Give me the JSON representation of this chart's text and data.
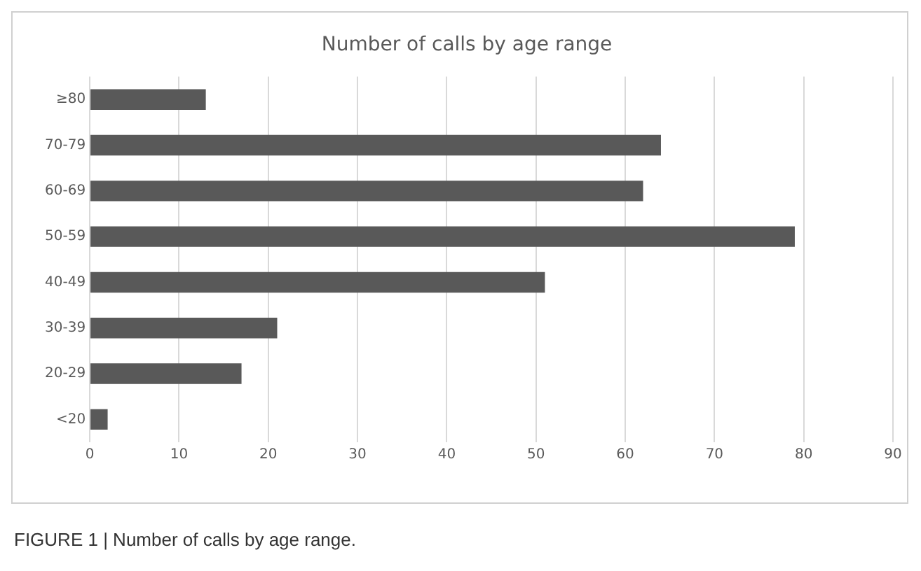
{
  "chart_data": {
    "type": "bar",
    "orientation": "horizontal",
    "title": "Number of calls by age range",
    "categories": [
      "≥80",
      "70-79",
      "60-69",
      "50-59",
      "40-49",
      "30-39",
      "20-29",
      "<20"
    ],
    "values": [
      13,
      64,
      62,
      79,
      51,
      21,
      17,
      2
    ],
    "color": "#595959",
    "xlim": [
      0,
      90
    ],
    "xticks": [
      0,
      10,
      20,
      30,
      40,
      50,
      60,
      70,
      80,
      90
    ],
    "grid": "x",
    "legend": false,
    "annotations": [
      "FIGURE 1 | Number of calls by age range."
    ]
  }
}
